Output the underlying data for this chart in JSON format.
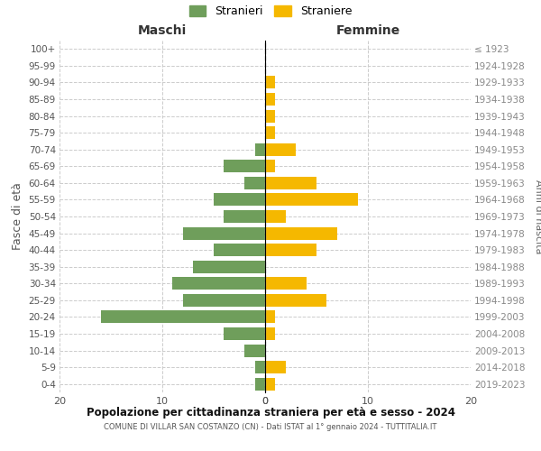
{
  "age_groups": [
    "0-4",
    "5-9",
    "10-14",
    "15-19",
    "20-24",
    "25-29",
    "30-34",
    "35-39",
    "40-44",
    "45-49",
    "50-54",
    "55-59",
    "60-64",
    "65-69",
    "70-74",
    "75-79",
    "80-84",
    "85-89",
    "90-94",
    "95-99",
    "100+"
  ],
  "birth_years": [
    "2019-2023",
    "2014-2018",
    "2009-2013",
    "2004-2008",
    "1999-2003",
    "1994-1998",
    "1989-1993",
    "1984-1988",
    "1979-1983",
    "1974-1978",
    "1969-1973",
    "1964-1968",
    "1959-1963",
    "1954-1958",
    "1949-1953",
    "1944-1948",
    "1939-1943",
    "1934-1938",
    "1929-1933",
    "1924-1928",
    "≤ 1923"
  ],
  "males": [
    1,
    1,
    2,
    4,
    16,
    8,
    9,
    7,
    5,
    8,
    4,
    5,
    2,
    4,
    1,
    0,
    0,
    0,
    0,
    0,
    0
  ],
  "females": [
    1,
    2,
    0,
    1,
    1,
    6,
    4,
    0,
    5,
    7,
    2,
    9,
    5,
    1,
    3,
    1,
    1,
    1,
    1,
    0,
    0
  ],
  "male_color": "#6f9e5b",
  "female_color": "#f5b800",
  "title": "Popolazione per cittadinanza straniera per età e sesso - 2024",
  "subtitle": "COMUNE DI VILLAR SAN COSTANZO (CN) - Dati ISTAT al 1° gennaio 2024 - TUTTITALIA.IT",
  "xlabel_left": "Maschi",
  "xlabel_right": "Femmine",
  "ylabel": "Fasce di età",
  "ylabel_right": "Anni di nascita",
  "legend_males": "Stranieri",
  "legend_females": "Straniere",
  "xlim": 20,
  "background_color": "#ffffff",
  "grid_color": "#cccccc",
  "bar_height": 0.75
}
